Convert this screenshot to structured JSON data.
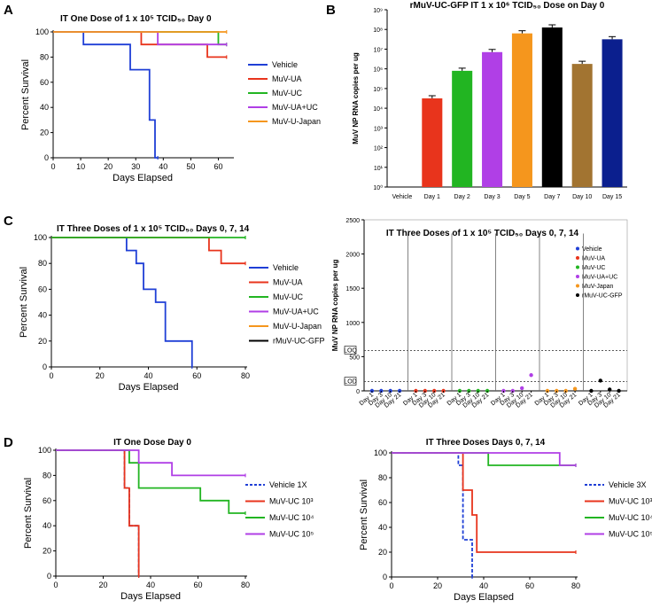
{
  "panel_letters": [
    "A",
    "B",
    "C",
    "D"
  ],
  "colors": {
    "vehicle": "#1f3fd6",
    "ua": "#e8341c",
    "uc": "#22b522",
    "uauc": "#b03fe6",
    "japan": "#f5961d",
    "gfp": "#000000",
    "brown": "#a27431",
    "navy": "#0b1f8e"
  },
  "chart_data": [
    {
      "id": "A",
      "type": "line",
      "title": "IT One Dose of 1 x 10⁵ TCID₅₀  Day 0",
      "xlabel": "Days Elapsed",
      "ylabel": "Percent Survival",
      "xlim": [
        0,
        65
      ],
      "ylim": [
        0,
        100
      ],
      "xticks": [
        0,
        10,
        20,
        30,
        40,
        50,
        60
      ],
      "yticks": [
        0,
        20,
        40,
        60,
        80,
        100
      ],
      "legend_position": "right",
      "series": [
        {
          "name": "Vehicle",
          "color": "#1f3fd6",
          "x": [
            0,
            11,
            11,
            28,
            28,
            35,
            35,
            37,
            37,
            38,
            38
          ],
          "y": [
            100,
            100,
            90,
            90,
            70,
            70,
            30,
            30,
            0,
            0,
            0
          ]
        },
        {
          "name": "MuV-UA",
          "color": "#e8341c",
          "x": [
            0,
            32,
            32,
            56,
            56,
            63
          ],
          "y": [
            100,
            100,
            90,
            90,
            80,
            80
          ]
        },
        {
          "name": "MuV-UC",
          "color": "#22b522",
          "x": [
            0,
            60,
            60,
            63
          ],
          "y": [
            100,
            100,
            90,
            90
          ]
        },
        {
          "name": "MuV-UA+UC",
          "color": "#b03fe6",
          "x": [
            0,
            38,
            38,
            63
          ],
          "y": [
            100,
            100,
            90,
            90
          ]
        },
        {
          "name": "MuV-U-Japan",
          "color": "#f5961d",
          "x": [
            0,
            63
          ],
          "y": [
            100,
            100
          ]
        }
      ]
    },
    {
      "id": "B",
      "type": "bar",
      "title": "rMuV-UC-GFP IT 1 x 10⁶ TCID₅₀ Dose on Day 0",
      "ylabel": "MuV NP RNA copies per ug",
      "yscale": "log",
      "ylim_exponent": [
        0,
        9
      ],
      "ytick_labels": [
        "10⁰",
        "10¹",
        "10²",
        "10³",
        "10⁴",
        "10⁵",
        "10⁶",
        "10⁷",
        "10⁸",
        "10⁹"
      ],
      "categories": [
        "Vehicle",
        "Day 1",
        "Day 2",
        "Day 3",
        "Day 5",
        "Day 7",
        "Day 10",
        "Day 15"
      ],
      "values_log10": [
        null,
        4.5,
        5.9,
        6.85,
        7.8,
        8.1,
        6.25,
        7.5
      ],
      "colors": [
        "#ffffff",
        "#e8341c",
        "#22b522",
        "#b03fe6",
        "#f5961d",
        "#000000",
        "#a27431",
        "#0b1f8e"
      ]
    },
    {
      "id": "C-left",
      "type": "line",
      "title": "IT Three Doses of 1 x 10⁵ TCID₅₀  Days 0, 7, 14",
      "xlabel": "Days Elapsed",
      "ylabel": "Percent Survival",
      "xlim": [
        0,
        80
      ],
      "ylim": [
        0,
        100
      ],
      "xticks": [
        0,
        20,
        40,
        60,
        80
      ],
      "yticks": [
        0,
        20,
        40,
        60,
        80,
        100
      ],
      "legend_position": "right",
      "series": [
        {
          "name": "Vehicle",
          "color": "#1f3fd6",
          "x": [
            0,
            31,
            31,
            35,
            35,
            38,
            38,
            43,
            43,
            47,
            47,
            51,
            51,
            58,
            58
          ],
          "y": [
            100,
            100,
            90,
            90,
            80,
            80,
            60,
            60,
            50,
            50,
            20,
            20,
            20,
            20,
            0
          ]
        },
        {
          "name": "MuV-UA",
          "color": "#e8341c",
          "x": [
            0,
            65,
            65,
            70,
            70,
            75,
            75,
            80
          ],
          "y": [
            100,
            100,
            90,
            90,
            80,
            80,
            80,
            80
          ]
        },
        {
          "name": "MuV-UC",
          "color": "#22b522",
          "x": [
            0,
            80
          ],
          "y": [
            100,
            100
          ]
        },
        {
          "name": "MuV-UA+UC",
          "color": "#b03fe6",
          "x": [],
          "y": []
        },
        {
          "name": "MuV-U-Japan",
          "color": "#f5961d",
          "x": [],
          "y": []
        },
        {
          "name": "rMuV-UC-GFP",
          "color": "#000000",
          "x": [],
          "y": []
        }
      ]
    },
    {
      "id": "C-right",
      "type": "scatter",
      "title": "IT Three Doses of 1 x 10⁵ TCID₅₀  Days 0, 7, 14",
      "ylabel": "MuV NP RNA copies per ug",
      "ylim": [
        0,
        2500
      ],
      "yticks": [
        0,
        500,
        1000,
        1500,
        2000,
        2500
      ],
      "loq_lines": [
        {
          "label": "LOQ",
          "value": 590
        },
        {
          "label": "LOD",
          "value": 135
        }
      ],
      "group_tick_labels": [
        "Day 1",
        "Day 3",
        "Day 10",
        "Day 21"
      ],
      "legend_position": "top-right",
      "groups": [
        {
          "name": "Vehicle",
          "color": "#1f3fd6",
          "values": [
            0,
            0,
            0,
            0
          ]
        },
        {
          "name": "MuV-UA",
          "color": "#e8341c",
          "values": [
            0,
            0,
            0,
            0
          ]
        },
        {
          "name": "MuV-UC",
          "color": "#22b522",
          "values": [
            0,
            0,
            0,
            0
          ]
        },
        {
          "name": "MuV-UA+UC",
          "color": "#b03fe6",
          "values": [
            0,
            0,
            40,
            230
          ]
        },
        {
          "name": "MuV-Japan",
          "color": "#f5961d",
          "values": [
            0,
            0,
            0,
            30
          ]
        },
        {
          "name": "rMuV-UC-GFP",
          "color": "#000000",
          "values": [
            0,
            150,
            20,
            0
          ]
        }
      ]
    },
    {
      "id": "D-left",
      "type": "line",
      "title": "IT One Dose Day 0",
      "xlabel": "Days Elapsed",
      "ylabel": "Percent Survival",
      "xlim": [
        0,
        80
      ],
      "ylim": [
        0,
        100
      ],
      "xticks": [
        0,
        20,
        40,
        60,
        80
      ],
      "yticks": [
        0,
        20,
        40,
        60,
        80,
        100
      ],
      "legend_position": "right",
      "series": [
        {
          "name": "Vehicle 1X",
          "color": "#1f3fd6",
          "dashed": true,
          "x": [
            0,
            29,
            29,
            31,
            31,
            35,
            35
          ],
          "y": [
            100,
            100,
            70,
            70,
            40,
            40,
            0
          ]
        },
        {
          "name": "MuV-UC 10³",
          "color": "#e8341c",
          "x": [
            0,
            29,
            29,
            31,
            31,
            35,
            35
          ],
          "y": [
            100,
            100,
            70,
            70,
            40,
            40,
            0
          ]
        },
        {
          "name": "MuV-UC 10⁴",
          "color": "#22b522",
          "x": [
            0,
            31,
            31,
            35,
            35,
            50,
            50,
            61,
            61,
            73,
            73,
            80
          ],
          "y": [
            100,
            100,
            90,
            90,
            70,
            70,
            70,
            70,
            60,
            60,
            50,
            50
          ]
        },
        {
          "name": "MuV-UC 10⁵",
          "color": "#b03fe6",
          "x": [
            0,
            35,
            35,
            49,
            49,
            80
          ],
          "y": [
            100,
            100,
            90,
            90,
            80,
            80
          ]
        }
      ]
    },
    {
      "id": "D-right",
      "type": "line",
      "title": "IT Three Doses Days 0, 7, 14",
      "xlabel": "Days Elapsed",
      "ylabel": "Percent Survival",
      "xlim": [
        0,
        80
      ],
      "ylim": [
        0,
        100
      ],
      "xticks": [
        0,
        20,
        40,
        60,
        80
      ],
      "yticks": [
        0,
        20,
        40,
        60,
        80,
        100
      ],
      "legend_position": "right",
      "series": [
        {
          "name": "Vehicle 3X",
          "color": "#1f3fd6",
          "dashed": true,
          "x": [
            0,
            29,
            29,
            31,
            31,
            33,
            33,
            35,
            35
          ],
          "y": [
            100,
            100,
            90,
            90,
            30,
            30,
            30,
            30,
            0
          ]
        },
        {
          "name": "MuV-UC 10³",
          "color": "#e8341c",
          "x": [
            0,
            31,
            31,
            35,
            35,
            37,
            37,
            80
          ],
          "y": [
            100,
            100,
            70,
            70,
            50,
            50,
            20,
            20
          ]
        },
        {
          "name": "MuV-UC 10⁴",
          "color": "#22b522",
          "x": [
            0,
            42,
            42,
            80
          ],
          "y": [
            100,
            100,
            90,
            90
          ]
        },
        {
          "name": "MuV-UC 10⁵",
          "color": "#b03fe6",
          "x": [
            0,
            73,
            73,
            80
          ],
          "y": [
            100,
            100,
            90,
            90
          ]
        }
      ]
    }
  ]
}
